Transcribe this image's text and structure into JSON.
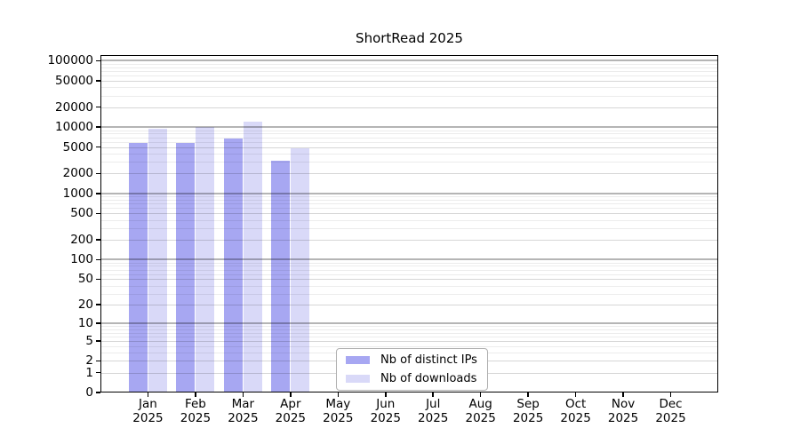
{
  "page": {
    "background": "#ffffff"
  },
  "chart_data": {
    "type": "bar",
    "title": "ShortRead 2025",
    "categories": [
      "Jan 2025",
      "Feb 2025",
      "Mar 2025",
      "Apr 2025",
      "May 2025",
      "Jun 2025",
      "Jul 2025",
      "Aug 2025",
      "Sep 2025",
      "Oct 2025",
      "Nov 2025",
      "Dec 2025"
    ],
    "series": [
      {
        "name": "Nb of distinct IPs",
        "color": "#a7a7f2",
        "values": [
          5800,
          5750,
          6650,
          3100,
          null,
          null,
          null,
          null,
          null,
          null,
          null,
          null
        ]
      },
      {
        "name": "Nb of downloads",
        "color": "#d9d9f8",
        "values": [
          9500,
          10200,
          12000,
          4750,
          null,
          null,
          null,
          null,
          null,
          null,
          null,
          null
        ]
      }
    ],
    "yscale": "log10(value+1)",
    "ytick_values": [
      0,
      1,
      2,
      5,
      10,
      20,
      50,
      100,
      200,
      500,
      1000,
      2000,
      5000,
      10000,
      20000,
      50000,
      100000
    ],
    "ytick_labels": [
      "0",
      "1",
      "2",
      "5",
      "10",
      "20",
      "50",
      "100",
      "200",
      "500",
      "1000",
      "2000",
      "5000",
      "10000",
      "20000",
      "50000",
      "100000"
    ],
    "ylim": [
      0,
      120000
    ],
    "grid": "horizontal; faint minors at 2-9 per decade, emphasized decade lines, drawn over bars",
    "legend_position": "inside bottom-center",
    "xlabel": "",
    "ylabel": ""
  }
}
